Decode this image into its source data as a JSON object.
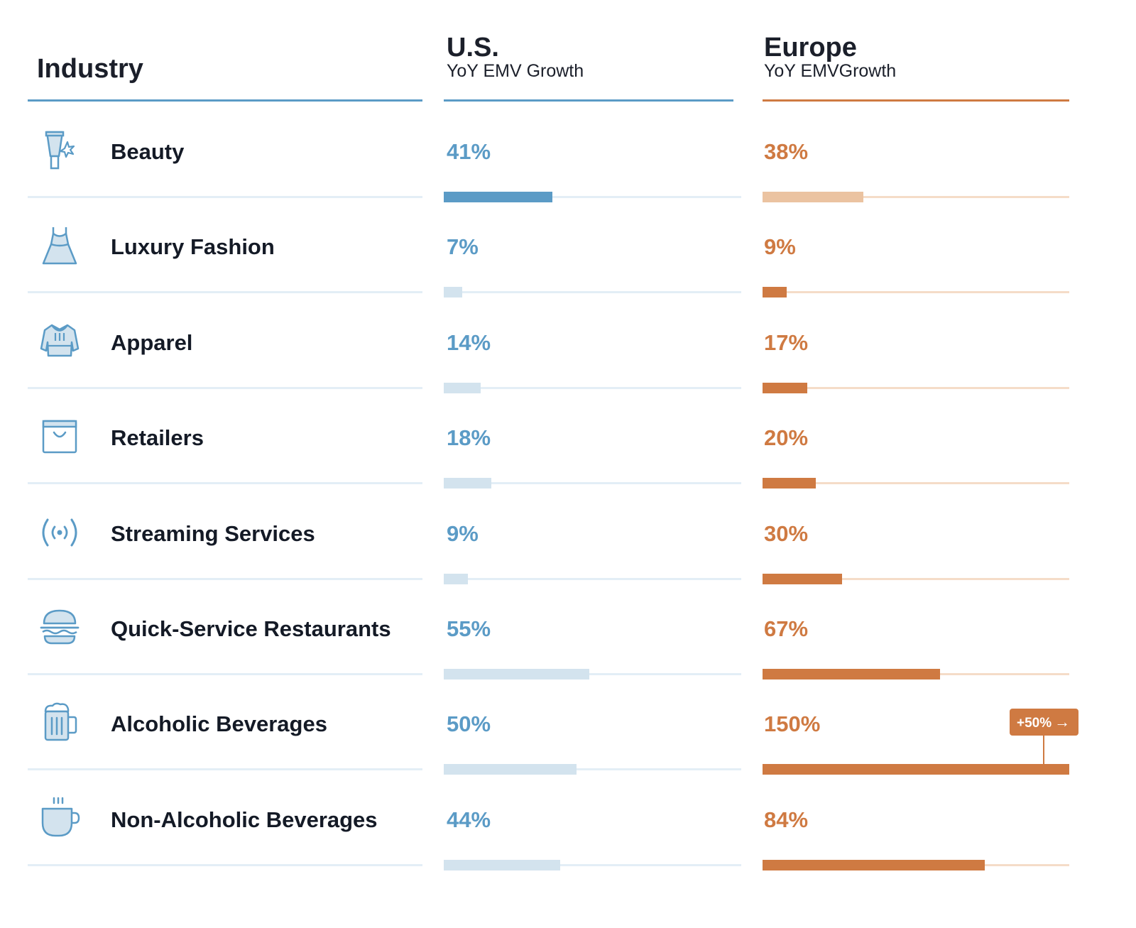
{
  "headers": {
    "industry": "Industry",
    "us_region": "U.S.",
    "us_subtitle": "YoY EMV Growth",
    "eu_region": "Europe",
    "eu_subtitle": "YoY EMVGrowth"
  },
  "colors": {
    "us_accent": "#5b9bc6",
    "us_bar_strong": "#5b9bc6",
    "us_bar_light": "#d3e3ee",
    "us_track": "#e3eef6",
    "eu_accent": "#cf7a42",
    "eu_bar_strong": "#cf7a42",
    "eu_bar_light": "#ebc3a1",
    "eu_track": "#f5dcc8",
    "industry_rule": "#e3eef6",
    "icon_stroke": "#5b9bc6",
    "icon_fill": "#d3e3ee"
  },
  "chart_data": {
    "type": "bar",
    "orientation": "horizontal",
    "title": "",
    "categories": [
      "Beauty",
      "Luxury Fashion",
      "Apparel",
      "Retailers",
      "Streaming Services",
      "Quick-Service Restaurants",
      "Alcoholic Beverages",
      "Non-Alcoholic Beverages"
    ],
    "series": [
      {
        "name": "U.S.",
        "values": [
          41,
          7,
          14,
          18,
          9,
          55,
          50,
          44
        ],
        "labels": [
          "41%",
          "7%",
          "14%",
          "18%",
          "9%",
          "55%",
          "50%",
          "44%"
        ],
        "highlight": [
          true,
          false,
          false,
          false,
          false,
          false,
          false,
          false
        ]
      },
      {
        "name": "Europe",
        "values": [
          38,
          9,
          17,
          20,
          30,
          67,
          150,
          84
        ],
        "labels": [
          "38%",
          "9%",
          "17%",
          "20%",
          "30%",
          "67%",
          "150%",
          "84%"
        ],
        "highlight": [
          false,
          true,
          true,
          true,
          true,
          true,
          true,
          true
        ]
      }
    ],
    "units": "%",
    "icons": [
      "beauty-tube-icon",
      "dress-icon",
      "jacket-icon",
      "shopping-bag-icon",
      "broadcast-icon",
      "burger-icon",
      "beer-mug-icon",
      "coffee-cup-icon"
    ],
    "annotations": [
      {
        "series": "Europe",
        "category": "Alcoholic Beverages",
        "text": "+50%",
        "arrow": "→"
      }
    ]
  }
}
